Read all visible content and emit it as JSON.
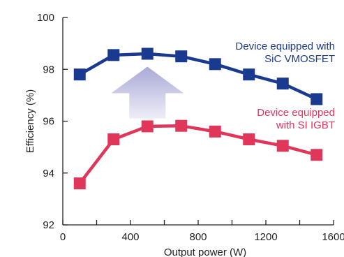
{
  "chart_data": {
    "type": "line",
    "title": "",
    "xlabel": "Output power (W)",
    "ylabel": "Efficiency (%)",
    "xlim": [
      0,
      1600
    ],
    "ylim": [
      92,
      100
    ],
    "x_ticks": [
      0,
      400,
      800,
      1200,
      1600
    ],
    "x_tick_labels": [
      "0",
      "400",
      "800",
      "1200",
      "1600"
    ],
    "x_minor_ticks": [
      200,
      600,
      1000,
      1400
    ],
    "y_ticks": [
      92,
      94,
      96,
      98,
      100
    ],
    "y_tick_labels": [
      "92",
      "94",
      "96",
      "98",
      "100"
    ],
    "grid": false,
    "series": [
      {
        "key": "sic",
        "label_lines": [
          "Device equipped with",
          "SiC VMOSFET"
        ],
        "color": "#1a3a8f",
        "marker": "square",
        "x": [
          100,
          300,
          500,
          700,
          900,
          1100,
          1300,
          1500
        ],
        "values": [
          97.8,
          98.55,
          98.6,
          98.5,
          98.2,
          97.8,
          97.45,
          96.85
        ]
      },
      {
        "key": "igbt",
        "label_lines": [
          "Device equipped",
          "with SI IGBT"
        ],
        "color": "#e0365a",
        "marker": "square",
        "x": [
          100,
          300,
          500,
          700,
          900,
          1100,
          1300,
          1500
        ],
        "values": [
          93.6,
          95.3,
          95.8,
          95.82,
          95.6,
          95.3,
          95.05,
          94.7
        ]
      }
    ],
    "annotation": {
      "kind": "up-arrow",
      "x": 500,
      "y_from": 96.1,
      "y_to": 98.1,
      "color_top": "#a9a9d6",
      "color_bottom": "#eeeef8"
    }
  }
}
